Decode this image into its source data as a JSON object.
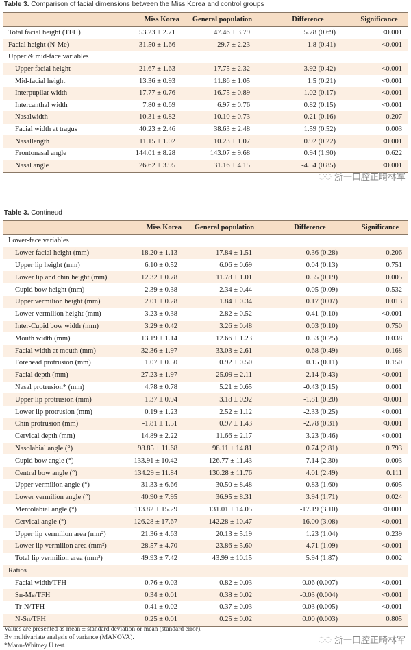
{
  "table1": {
    "title_prefix": "Table 3.",
    "title": "Comparison of facial dimensions between the Miss Korea and control groups",
    "headers": [
      "",
      "Miss Korea",
      "General population",
      "Difference",
      "Significance"
    ],
    "rows": [
      {
        "label": "Total facial height (TFH)",
        "mk": "53.23 ± 2.71",
        "gp": "47.46 ± 3.79",
        "diff": "5.78 (0.69)",
        "sig": "<0.001"
      },
      {
        "label": "Facial height (N-Me)",
        "mk": "31.50 ± 1.66",
        "gp": "29.7 ± 2.23",
        "diff": "1.8 (0.41)",
        "sig": "<0.001"
      },
      {
        "label": "Upper & mid-face variables",
        "section": true
      },
      {
        "label": "Upper facial height",
        "mk": "21.67 ± 1.63",
        "gp": "17.75 ± 2.32",
        "diff": "3.92 (0.42)",
        "sig": "<0.001",
        "sub": true
      },
      {
        "label": "Mid-facial height",
        "mk": "13.36 ± 0.93",
        "gp": "11.86 ± 1.05",
        "diff": "1.5 (0.21)",
        "sig": "<0.001",
        "sub": true
      },
      {
        "label": "Interpupilar width",
        "mk": "17.77 ± 0.76",
        "gp": "16.75 ± 0.89",
        "diff": "1.02 (0.17)",
        "sig": "<0.001",
        "sub": true
      },
      {
        "label": "Intercanthal width",
        "mk": "7.80 ± 0.69",
        "gp": "6.97 ± 0.76",
        "diff": "0.82 (0.15)",
        "sig": "<0.001",
        "sub": true
      },
      {
        "label": "Nasalwidth",
        "mk": "10.31 ± 0.82",
        "gp": "10.10 ± 0.73",
        "diff": "0.21 (0.16)",
        "sig": "0.207",
        "sub": true
      },
      {
        "label": "Facial width at tragus",
        "mk": "40.23 ± 2.46",
        "gp": "38.63 ± 2.48",
        "diff": "1.59 (0.52)",
        "sig": "0.003",
        "sub": true
      },
      {
        "label": "Nasallength",
        "mk": "11.15 ± 1.02",
        "gp": "10.23 ± 1.07",
        "diff": "0.92 (0.22)",
        "sig": "<0.001",
        "sub": true
      },
      {
        "label": "Frontonasal angle",
        "mk": "144.01 ± 8.28",
        "gp": "143.07 ± 9.68",
        "diff": "0.94 (1.90)",
        "sig": "0.622",
        "sub": true
      },
      {
        "label": "Nasal angle",
        "mk": "26.62 ± 3.95",
        "gp": "31.16 ± 4.15",
        "diff": "-4.54 (0.85)",
        "sig": "<0.001",
        "sub": true
      }
    ]
  },
  "table2": {
    "title_prefix": "Table 3.",
    "title": "Contineud",
    "headers": [
      "",
      "Miss Korea",
      "General population",
      "Difference",
      "Significance"
    ],
    "rows": [
      {
        "label": "Lower-face variables",
        "section": true
      },
      {
        "label": "Lower facial height (mm)",
        "mk": "18.20 ± 1.13",
        "gp": "17.84 ± 1.51",
        "diff": "0.36 (0.28)",
        "sig": "0.206",
        "sub": true
      },
      {
        "label": "Upper lip height (mm)",
        "mk": "6.10 ± 0.52",
        "gp": "6.06 ± 0.69",
        "diff": "0.04 (0.13)",
        "sig": "0.751",
        "sub": true
      },
      {
        "label": "Lower lip and chin height (mm)",
        "mk": "12.32 ± 0.78",
        "gp": "11.78 ± 1.01",
        "diff": "0.55 (0.19)",
        "sig": "0.005",
        "sub": true
      },
      {
        "label": "Cupid bow height (mm)",
        "mk": "2.39 ± 0.38",
        "gp": "2.34 ± 0.44",
        "diff": "0.05 (0.09)",
        "sig": "0.532",
        "sub": true
      },
      {
        "label": "Upper vermilion height (mm)",
        "mk": "2.01 ± 0.28",
        "gp": "1.84 ± 0.34",
        "diff": "0.17 (0.07)",
        "sig": "0.013",
        "sub": true
      },
      {
        "label": "Lower vermilion height (mm)",
        "mk": "3.23 ± 0.38",
        "gp": "2.82 ± 0.52",
        "diff": "0.41 (0.10)",
        "sig": "<0.001",
        "sub": true
      },
      {
        "label": "Inter-Cupid bow width (mm)",
        "mk": "3.29 ± 0.42",
        "gp": "3.26 ± 0.48",
        "diff": "0.03 (0.10)",
        "sig": "0.750",
        "sub": true
      },
      {
        "label": "Mouth width (mm)",
        "mk": "13.19 ± 1.14",
        "gp": "12.66 ± 1.23",
        "diff": "0.53 (0.25)",
        "sig": "0.038",
        "sub": true
      },
      {
        "label": "Facial width at mouth (mm)",
        "mk": "32.36 ± 1.97",
        "gp": "33.03 ± 2.61",
        "diff": "-0.68 (0.49)",
        "sig": "0.168",
        "sub": true
      },
      {
        "label": "Forehead protrusion (mm)",
        "mk": "1.07 ± 0.50",
        "gp": "0.92 ± 0.50",
        "diff": "0.15 (0.11)",
        "sig": "0.150",
        "sub": true
      },
      {
        "label": "Facial depth (mm)",
        "mk": "27.23 ± 1.97",
        "gp": "25.09 ± 2.11",
        "diff": "2.14 (0.43)",
        "sig": "<0.001",
        "sub": true
      },
      {
        "label": "Nasal protrusion* (mm)",
        "mk": "4.78 ± 0.78",
        "gp": "5.21 ± 0.65",
        "diff": "-0.43 (0.15)",
        "sig": "0.001",
        "sub": true
      },
      {
        "label": "Upper lip protrusion (mm)",
        "mk": "1.37 ± 0.94",
        "gp": "3.18 ± 0.92",
        "diff": "-1.81 (0.20)",
        "sig": "<0.001",
        "sub": true
      },
      {
        "label": "Lower lip protrusion (mm)",
        "mk": "0.19 ± 1.23",
        "gp": "2.52 ± 1.12",
        "diff": "-2.33 (0.25)",
        "sig": "<0.001",
        "sub": true
      },
      {
        "label": "Chin protrusion (mm)",
        "mk": "-1.81 ± 1.51",
        "gp": "0.97 ± 1.43",
        "diff": "-2.78 (0.31)",
        "sig": "<0.001",
        "sub": true
      },
      {
        "label": "Cervical depth (mm)",
        "mk": "14.89 ± 2.22",
        "gp": "11.66 ± 2.17",
        "diff": "3.23 (0.46)",
        "sig": "<0.001",
        "sub": true
      },
      {
        "label": "Nasolabial angle (°)",
        "mk": "98.85 ± 11.68",
        "gp": "98.11 ± 14.81",
        "diff": "0.74 (2.81)",
        "sig": "0.793",
        "sub": true
      },
      {
        "label": "Cupid bow angle (°)",
        "mk": "133.91 ± 10.42",
        "gp": "126.77 ± 11.43",
        "diff": "7.14 (2.30)",
        "sig": "0.003",
        "sub": true
      },
      {
        "label": "Central bow angle (°)",
        "mk": "134.29 ± 11.84",
        "gp": "130.28 ± 11.76",
        "diff": "4.01 (2.49)",
        "sig": "0.111",
        "sub": true
      },
      {
        "label": "Upper vermilion angle (°)",
        "mk": "31.33 ± 6.66",
        "gp": "30.50 ± 8.48",
        "diff": "0.83 (1.60)",
        "sig": "0.605",
        "sub": true
      },
      {
        "label": "Lower vermilion angle (°)",
        "mk": "40.90 ± 7.95",
        "gp": "36.95 ± 8.31",
        "diff": "3.94 (1.71)",
        "sig": "0.024",
        "sub": true
      },
      {
        "label": "Mentolabial angle (°)",
        "mk": "113.82 ± 15.29",
        "gp": "131.01 ± 14.05",
        "diff": "-17.19 (3.10)",
        "sig": "<0.001",
        "sub": true
      },
      {
        "label": "Cervical angle (°)",
        "mk": "126.28 ± 17.67",
        "gp": "142.28 ± 10.47",
        "diff": "-16.00 (3.08)",
        "sig": "<0.001",
        "sub": true
      },
      {
        "label": "Upper lip vermilion area (mm²)",
        "mk": "21.36 ± 4.63",
        "gp": "20.13 ± 5.19",
        "diff": "1.23 (1.04)",
        "sig": "0.239",
        "sub": true
      },
      {
        "label": "Lower lip vermilion area (mm²)",
        "mk": "28.57 ± 4.70",
        "gp": "23.86 ± 5.60",
        "diff": "4.71 (1.09)",
        "sig": "<0.001",
        "sub": true
      },
      {
        "label": "Total lip vermilion area (mm²)",
        "mk": "49.93 ± 7.42",
        "gp": "43.99 ± 10.15",
        "diff": "5.94 (1.87)",
        "sig": "0.002",
        "sub": true
      },
      {
        "label": "Ratios",
        "section": true
      },
      {
        "label": "Facial width/TFH",
        "mk": "0.76 ± 0.03",
        "gp": "0.82 ± 0.03",
        "diff": "-0.06 (0.007)",
        "sig": "<0.001",
        "sub": true
      },
      {
        "label": "Sn-Me/TFH",
        "mk": "0.34 ± 0.01",
        "gp": "0.38 ± 0.02",
        "diff": "-0.03 (0.004)",
        "sig": "<0.001",
        "sub": true
      },
      {
        "label": "Tr-N/TFH",
        "mk": "0.41 ± 0.02",
        "gp": "0.37 ± 0.03",
        "diff": "0.03 (0.005)",
        "sig": "<0.001",
        "sub": true
      },
      {
        "label": "N-Sn/TFH",
        "mk": "0.25 ± 0.01",
        "gp": "0.25 ± 0.02",
        "diff": "0.00 (0.003)",
        "sig": "0.805",
        "sub": true
      }
    ]
  },
  "notes": [
    "Values are presented as mean ± standard deviation or mean (standard error).",
    "By multivariate analysis of variance (MANOVA).",
    "*Mann-Whitney U test."
  ],
  "watermark": {
    "icon": "wechat-icon",
    "text": "浙一口腔正畸林军"
  },
  "colors": {
    "header_bg": "#f6dec6",
    "stripe_bg": "#fcefe3",
    "rule": "#8a7866"
  }
}
